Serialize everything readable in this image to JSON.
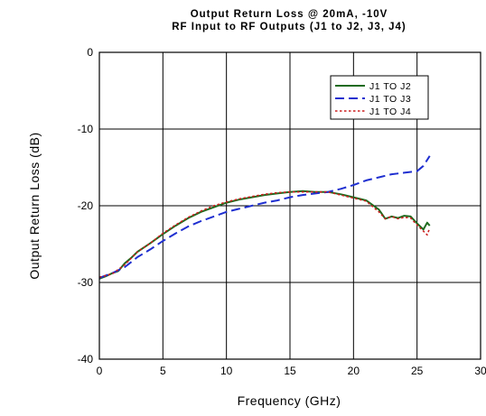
{
  "chart_data": {
    "type": "line",
    "title": "Output Return Loss @ 20mA, -10V",
    "subtitle": "RF Input to RF Outputs (J1 to J2, J3, J4)",
    "xlabel": "Frequency (GHz)",
    "ylabel": "Output Return Loss (dB)",
    "xlim": [
      0,
      30
    ],
    "ylim": [
      -40,
      0
    ],
    "xticks": [
      0,
      5,
      10,
      15,
      20,
      25,
      30
    ],
    "yticks": [
      0,
      -10,
      -20,
      -30,
      -40
    ],
    "grid": true,
    "legend_position": "top-right",
    "series": [
      {
        "name": "J1 TO J2",
        "color": "#1e6b1e",
        "dash": "solid",
        "x": [
          0,
          0.5,
          1,
          1.5,
          2,
          2.5,
          3,
          4,
          5,
          6,
          7,
          8,
          9,
          10,
          11,
          12,
          13,
          14,
          15,
          16,
          17,
          18,
          19,
          20,
          21,
          22,
          22.5,
          23,
          23.5,
          24,
          24.5,
          25,
          25.5,
          25.8,
          26
        ],
        "y": [
          -29.5,
          -29.2,
          -28.8,
          -28.5,
          -27.5,
          -26.8,
          -26,
          -24.9,
          -23.7,
          -22.6,
          -21.6,
          -20.8,
          -20.2,
          -19.6,
          -19.2,
          -18.9,
          -18.6,
          -18.4,
          -18.2,
          -18.1,
          -18.2,
          -18.2,
          -18.5,
          -18.9,
          -19.3,
          -20.5,
          -21.7,
          -21.4,
          -21.6,
          -21.3,
          -21.4,
          -22.3,
          -23.1,
          -22.2,
          -22.6
        ]
      },
      {
        "name": "J1 TO J3",
        "color": "#1f2fd0",
        "dash": "long-dash",
        "x": [
          0,
          1,
          2,
          3,
          4,
          5,
          6,
          7,
          8,
          9,
          10,
          11,
          12,
          13,
          14,
          15,
          16,
          17,
          18,
          19,
          20,
          21,
          22,
          23,
          24,
          25,
          25.5,
          26
        ],
        "y": [
          -29.4,
          -28.8,
          -28,
          -26.7,
          -25.7,
          -24.6,
          -23.6,
          -22.7,
          -22,
          -21.4,
          -20.8,
          -20.4,
          -20,
          -19.6,
          -19.3,
          -18.9,
          -18.6,
          -18.4,
          -18.2,
          -17.8,
          -17.3,
          -16.7,
          -16.3,
          -15.9,
          -15.7,
          -15.5,
          -14.8,
          -13.5
        ]
      },
      {
        "name": "J1 TO J4",
        "color": "#cc1f1f",
        "dash": "dotted",
        "x": [
          0,
          1,
          2,
          3,
          4,
          5,
          6,
          7,
          8,
          9,
          10,
          11,
          12,
          13,
          14,
          15,
          16,
          17,
          18,
          19,
          20,
          21,
          22,
          22.5,
          23,
          23.5,
          24,
          24.5,
          25,
          25.5,
          25.8,
          26
        ],
        "y": [
          -29.3,
          -28.9,
          -27.7,
          -26,
          -24.9,
          -23.6,
          -22.5,
          -21.5,
          -20.7,
          -20,
          -19.5,
          -19.1,
          -18.8,
          -18.5,
          -18.3,
          -18.2,
          -18.2,
          -18.2,
          -18.2,
          -18.6,
          -19,
          -19.4,
          -20.8,
          -21.7,
          -21.4,
          -21.7,
          -21.5,
          -21.6,
          -22.5,
          -23.3,
          -23.8,
          -22.9
        ]
      }
    ]
  }
}
